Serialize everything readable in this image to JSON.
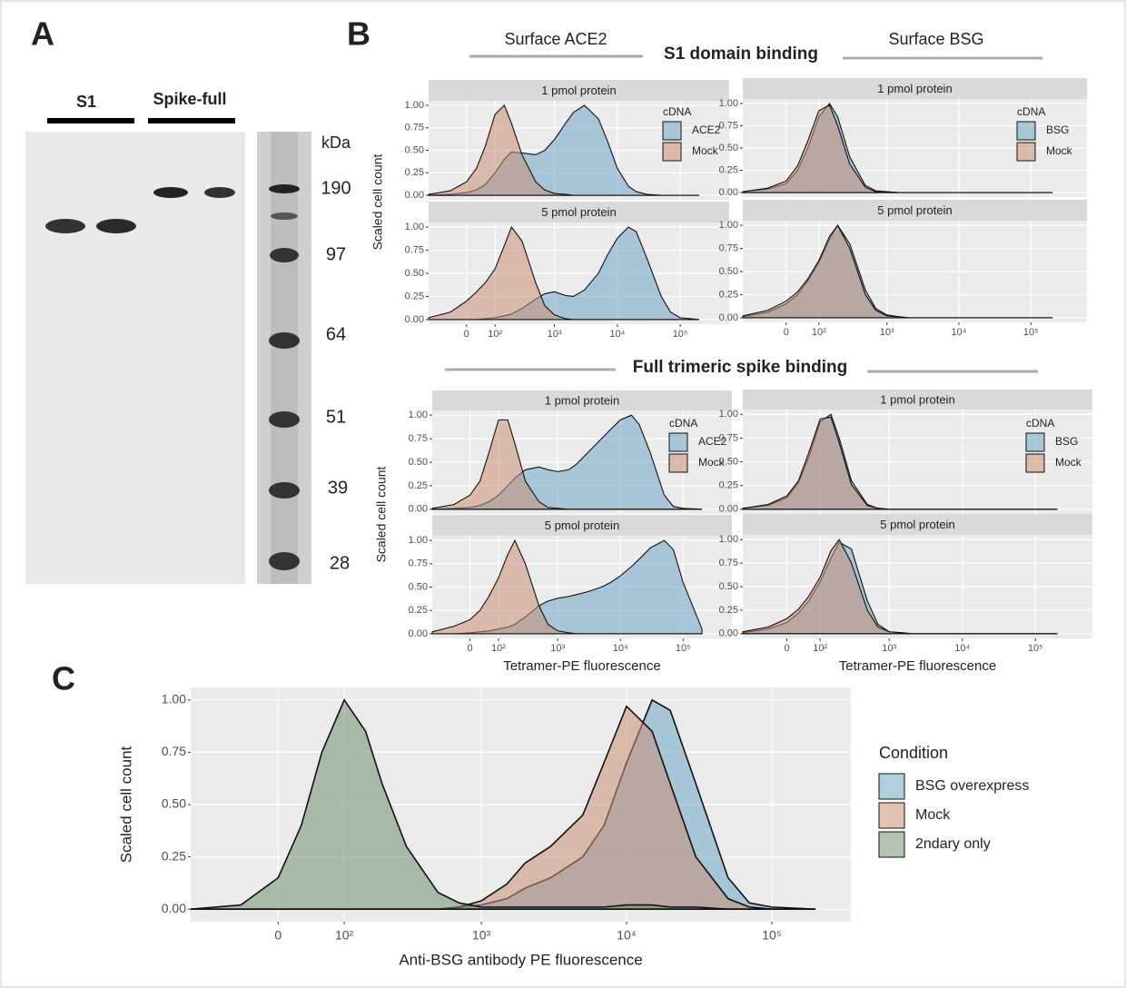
{
  "panels": {
    "a": "A",
    "b": "B",
    "c": "C"
  },
  "gel": {
    "lanes": [
      "S1",
      "Spike-full"
    ],
    "unit": "kDa",
    "markers": [
      190,
      97,
      64,
      51,
      39,
      28
    ]
  },
  "headers": {
    "left": "Surface ACE2",
    "s1": "S1 domain binding",
    "right": "Surface BSG",
    "full": "Full trimeric spike binding"
  },
  "chart_data": [
    {
      "type": "density",
      "facets": [
        "1 pmol protein",
        "5 pmol protein"
      ],
      "ylabel": "Scaled cell count",
      "legend_title": "cDNA",
      "xscale": "asinh",
      "grid": true,
      "x": [
        -150,
        -50,
        0,
        30,
        60,
        100,
        150,
        200,
        300,
        500,
        700,
        1000,
        1500,
        2000,
        3000,
        5000,
        7000,
        10000,
        15000,
        20000,
        30000,
        50000,
        70000,
        100000,
        200000
      ],
      "xlim": [
        -150,
        600000
      ],
      "xticks": [
        0,
        {
          "value": 100,
          "label": "10²"
        },
        {
          "value": 1000,
          "label": "10³"
        },
        {
          "value": 10000,
          "label": "10⁴"
        },
        {
          "value": 100000,
          "label": "10⁵"
        }
      ],
      "ylim": [
        -0.05,
        1.05
      ],
      "yticks": [
        {
          "value": 0,
          "label": "0.00"
        },
        0.25,
        {
          "value": 0.5,
          "label": "0.50"
        },
        0.75,
        {
          "value": 1,
          "label": "1.00"
        }
      ],
      "series": [
        {
          "name": "ACE2",
          "color": "#6ea6c6",
          "values": [
            [
              0,
              0.01,
              0.03,
              0.06,
              0.12,
              0.25,
              0.4,
              0.48,
              0.47,
              0.45,
              0.5,
              0.62,
              0.8,
              0.92,
              1.0,
              0.85,
              0.6,
              0.3,
              0.1,
              0.04,
              0.01,
              0,
              0,
              0,
              0
            ],
            [
              0,
              0,
              0,
              0,
              0.01,
              0.02,
              0.04,
              0.06,
              0.12,
              0.22,
              0.28,
              0.3,
              0.26,
              0.25,
              0.32,
              0.5,
              0.7,
              0.88,
              1.0,
              0.95,
              0.65,
              0.25,
              0.08,
              0.02,
              0
            ]
          ]
        },
        {
          "name": "Mock",
          "color": "#c98f74",
          "values": [
            [
              0.01,
              0.05,
              0.15,
              0.3,
              0.55,
              0.9,
              1.0,
              0.8,
              0.45,
              0.15,
              0.06,
              0.02,
              0.01,
              0,
              0,
              0,
              0,
              0,
              0,
              0,
              0,
              0,
              0,
              0,
              0
            ],
            [
              0.02,
              0.08,
              0.2,
              0.3,
              0.4,
              0.55,
              0.8,
              1.0,
              0.85,
              0.4,
              0.15,
              0.05,
              0.01,
              0,
              0,
              0,
              0,
              0,
              0,
              0,
              0,
              0,
              0,
              0,
              0
            ]
          ]
        }
      ]
    },
    {
      "type": "density",
      "facets": [
        "1 pmol protein",
        "5 pmol protein"
      ],
      "legend_title": "cDNA",
      "xscale": "asinh",
      "grid": true,
      "x": [
        -150,
        -50,
        0,
        30,
        60,
        100,
        150,
        200,
        300,
        500,
        700,
        1000,
        1500,
        2000,
        3000,
        5000,
        7000,
        10000,
        15000,
        20000,
        30000,
        50000,
        70000,
        100000,
        200000
      ],
      "xlim": [
        -150,
        600000
      ],
      "xticks": [
        0,
        {
          "value": 100,
          "label": "10²"
        },
        {
          "value": 1000,
          "label": "10³"
        },
        {
          "value": 10000,
          "label": "10⁴"
        },
        {
          "value": 100000,
          "label": "10⁵"
        }
      ],
      "ylim": [
        -0.05,
        1.05
      ],
      "yticks": [
        {
          "value": 0,
          "label": "0.00"
        },
        0.25,
        {
          "value": 0.5,
          "label": "0.50"
        },
        0.75,
        {
          "value": 1,
          "label": "1.00"
        }
      ],
      "series": [
        {
          "name": "BSG",
          "color": "#6ea6c6",
          "values": [
            [
              0.01,
              0.04,
              0.1,
              0.25,
              0.5,
              0.85,
              1.0,
              0.85,
              0.4,
              0.08,
              0.02,
              0.01,
              0,
              0,
              0,
              0,
              0,
              0,
              0,
              0,
              0,
              0,
              0,
              0,
              0
            ],
            [
              0.01,
              0.06,
              0.15,
              0.25,
              0.4,
              0.6,
              0.85,
              1.0,
              0.8,
              0.3,
              0.1,
              0.03,
              0.01,
              0,
              0,
              0,
              0,
              0,
              0,
              0,
              0,
              0,
              0,
              0,
              0
            ]
          ]
        },
        {
          "name": "Mock",
          "color": "#c98f74",
          "values": [
            [
              0.01,
              0.05,
              0.13,
              0.3,
              0.58,
              0.92,
              0.98,
              0.75,
              0.32,
              0.06,
              0.01,
              0,
              0,
              0,
              0,
              0,
              0,
              0,
              0,
              0,
              0,
              0,
              0,
              0,
              0
            ],
            [
              0.02,
              0.08,
              0.18,
              0.28,
              0.42,
              0.62,
              0.88,
              1.0,
              0.75,
              0.25,
              0.08,
              0.02,
              0.01,
              0,
              0,
              0,
              0,
              0,
              0,
              0,
              0,
              0,
              0,
              0,
              0
            ]
          ]
        }
      ]
    },
    {
      "type": "density",
      "facets": [
        "1 pmol protein",
        "5 pmol protein"
      ],
      "ylabel": "Scaled cell count",
      "xlabel": "Tetramer-PE fluorescence",
      "legend_title": "cDNA",
      "xscale": "asinh",
      "grid": true,
      "x": [
        -150,
        -50,
        0,
        30,
        60,
        100,
        150,
        200,
        300,
        500,
        700,
        1000,
        1500,
        2000,
        3000,
        5000,
        7000,
        10000,
        15000,
        20000,
        30000,
        50000,
        70000,
        100000,
        200000
      ],
      "xlim": [
        -150,
        600000
      ],
      "xticks": [
        0,
        {
          "value": 100,
          "label": "10²"
        },
        {
          "value": 1000,
          "label": "10³"
        },
        {
          "value": 10000,
          "label": "10⁴"
        },
        {
          "value": 100000,
          "label": "10⁵"
        }
      ],
      "ylim": [
        -0.05,
        1.05
      ],
      "yticks": [
        {
          "value": 0,
          "label": "0.00"
        },
        0.25,
        {
          "value": 0.5,
          "label": "0.50"
        },
        0.75,
        {
          "value": 1,
          "label": "1.00"
        }
      ],
      "series": [
        {
          "name": "ACE2",
          "color": "#6ea6c6",
          "values": [
            [
              0,
              0.01,
              0.02,
              0.04,
              0.08,
              0.15,
              0.25,
              0.33,
              0.42,
              0.45,
              0.42,
              0.4,
              0.42,
              0.48,
              0.6,
              0.75,
              0.85,
              0.95,
              1.0,
              0.9,
              0.6,
              0.15,
              0.03,
              0.01,
              0
            ],
            [
              0,
              0,
              0.01,
              0.02,
              0.03,
              0.05,
              0.07,
              0.1,
              0.18,
              0.3,
              0.35,
              0.38,
              0.4,
              0.42,
              0.45,
              0.5,
              0.55,
              0.62,
              0.72,
              0.8,
              0.92,
              1.0,
              0.9,
              0.55,
              0.05
            ]
          ]
        },
        {
          "name": "Mock",
          "color": "#c98f74",
          "values": [
            [
              0.01,
              0.05,
              0.15,
              0.3,
              0.6,
              0.95,
              0.95,
              0.7,
              0.3,
              0.08,
              0.02,
              0.01,
              0,
              0,
              0,
              0,
              0,
              0,
              0,
              0,
              0,
              0,
              0,
              0,
              0
            ],
            [
              0.02,
              0.08,
              0.15,
              0.25,
              0.4,
              0.6,
              0.85,
              1.0,
              0.75,
              0.3,
              0.1,
              0.03,
              0.01,
              0,
              0,
              0,
              0,
              0,
              0,
              0,
              0,
              0,
              0,
              0,
              0
            ]
          ]
        }
      ]
    },
    {
      "type": "density",
      "facets": [
        "1 pmol protein",
        "5 pmol protein"
      ],
      "xlabel": "Tetramer-PE fluorescence",
      "legend_title": "cDNA",
      "xscale": "asinh",
      "grid": true,
      "x": [
        -150,
        -50,
        0,
        30,
        60,
        100,
        150,
        200,
        300,
        500,
        700,
        1000,
        1500,
        2000,
        3000,
        5000,
        7000,
        10000,
        15000,
        20000,
        30000,
        50000,
        70000,
        100000,
        200000
      ],
      "xlim": [
        -150,
        600000
      ],
      "xticks": [
        0,
        {
          "value": 100,
          "label": "10²"
        },
        {
          "value": 1000,
          "label": "10³"
        },
        {
          "value": 10000,
          "label": "10⁴"
        },
        {
          "value": 100000,
          "label": "10⁵"
        }
      ],
      "ylim": [
        -0.05,
        1.05
      ],
      "yticks": [
        {
          "value": 0,
          "label": "0.00"
        },
        0.25,
        {
          "value": 0.5,
          "label": "0.50"
        },
        0.75,
        {
          "value": 1,
          "label": "1.00"
        }
      ],
      "series": [
        {
          "name": "BSG",
          "color": "#6ea6c6",
          "values": [
            [
              0.01,
              0.04,
              0.12,
              0.28,
              0.55,
              0.92,
              1.0,
              0.75,
              0.3,
              0.05,
              0.01,
              0,
              0,
              0,
              0,
              0,
              0,
              0,
              0,
              0,
              0,
              0,
              0,
              0,
              0
            ],
            [
              0.01,
              0.05,
              0.12,
              0.22,
              0.35,
              0.55,
              0.8,
              0.97,
              0.9,
              0.35,
              0.1,
              0.02,
              0.01,
              0,
              0,
              0,
              0,
              0,
              0,
              0,
              0,
              0,
              0,
              0,
              0
            ]
          ]
        },
        {
          "name": "Mock",
          "color": "#c98f74",
          "values": [
            [
              0.01,
              0.05,
              0.14,
              0.3,
              0.6,
              0.95,
              0.97,
              0.7,
              0.26,
              0.04,
              0.01,
              0,
              0,
              0,
              0,
              0,
              0,
              0,
              0,
              0,
              0,
              0,
              0,
              0,
              0
            ],
            [
              0.02,
              0.07,
              0.16,
              0.26,
              0.4,
              0.6,
              0.88,
              1.0,
              0.75,
              0.25,
              0.07,
              0.02,
              0.01,
              0,
              0,
              0,
              0,
              0,
              0,
              0,
              0,
              0,
              0,
              0,
              0
            ]
          ]
        }
      ]
    },
    {
      "type": "density",
      "ylabel": "Scaled cell count",
      "xlabel": "Anti-BSG antibody PE fluorescence",
      "legend_title": "Condition",
      "xscale": "asinh",
      "grid": true,
      "x": [
        -150,
        -50,
        0,
        30,
        60,
        100,
        150,
        200,
        300,
        500,
        700,
        1000,
        1500,
        2000,
        3000,
        5000,
        7000,
        10000,
        15000,
        20000,
        30000,
        50000,
        70000,
        100000,
        200000
      ],
      "xlim": [
        -150,
        350000
      ],
      "xticks": [
        0,
        {
          "value": 100,
          "label": "10²"
        },
        {
          "value": 1000,
          "label": "10³"
        },
        {
          "value": 10000,
          "label": "10⁴"
        },
        {
          "value": 100000,
          "label": "10⁵"
        }
      ],
      "ylim": [
        -0.06,
        1.06
      ],
      "yticks": [
        {
          "value": 0,
          "label": "0.00"
        },
        0.25,
        {
          "value": 0.5,
          "label": "0.50"
        },
        0.75,
        {
          "value": 1,
          "label": "1.00"
        }
      ],
      "series": [
        {
          "name": "BSG overexpress",
          "color": "#6ea6c6",
          "values": [
            0,
            0,
            0,
            0,
            0,
            0,
            0,
            0,
            0,
            0,
            0.01,
            0.02,
            0.05,
            0.1,
            0.15,
            0.25,
            0.4,
            0.7,
            1.0,
            0.95,
            0.6,
            0.15,
            0.03,
            0.01,
            0
          ]
        },
        {
          "name": "Mock",
          "color": "#c98f74",
          "values": [
            0,
            0,
            0,
            0,
            0,
            0,
            0,
            0,
            0,
            0,
            0.01,
            0.04,
            0.12,
            0.22,
            0.3,
            0.45,
            0.7,
            0.97,
            0.85,
            0.6,
            0.25,
            0.05,
            0.01,
            0,
            0
          ]
        },
        {
          "name": "2ndary only",
          "color": "#6f8f70",
          "values": [
            0,
            0.02,
            0.15,
            0.4,
            0.75,
            1.0,
            0.85,
            0.6,
            0.3,
            0.08,
            0.03,
            0.01,
            0.01,
            0.01,
            0.01,
            0.01,
            0.01,
            0.02,
            0.02,
            0.01,
            0.01,
            0,
            0,
            0,
            0
          ]
        }
      ]
    }
  ]
}
